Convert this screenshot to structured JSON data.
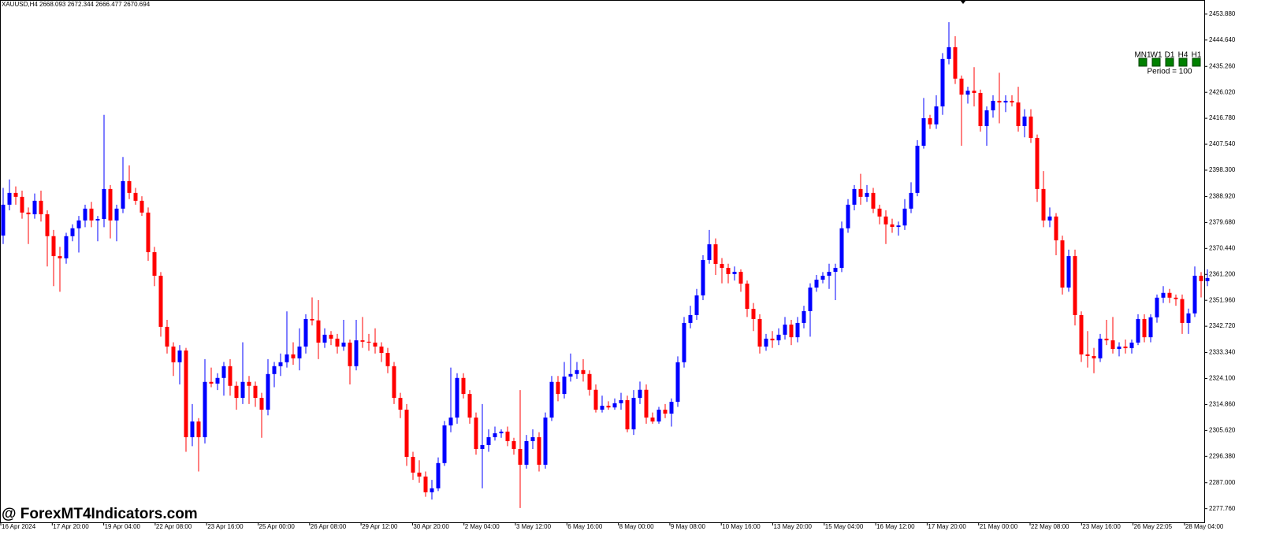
{
  "chart_data": {
    "type": "candlestick",
    "header": "XAUUSD,H4  2668.093 2672.344 2666.477 2670.694",
    "watermark": "@ ForexMT4Indicators.com",
    "panel": {
      "timeframes": [
        "MN1",
        "W1",
        "D1",
        "H4",
        "H1"
      ],
      "period": "Period = 100",
      "box_color": "#008000"
    },
    "up_color": "#0000ff",
    "down_color": "#ff0000",
    "ylim": [
      2272.9,
      2458.9
    ],
    "yticks": [
      {
        "value": 2453.88,
        "label": "2453.880"
      },
      {
        "value": 2444.64,
        "label": "2444.640"
      },
      {
        "value": 2435.26,
        "label": "2435.260"
      },
      {
        "value": 2426.02,
        "label": "2426.020"
      },
      {
        "value": 2416.78,
        "label": "2416.780"
      },
      {
        "value": 2407.54,
        "label": "2407.540"
      },
      {
        "value": 2398.3,
        "label": "2398.300"
      },
      {
        "value": 2388.92,
        "label": "2388.920"
      },
      {
        "value": 2379.68,
        "label": "2379.680"
      },
      {
        "value": 2370.44,
        "label": "2370.440"
      },
      {
        "value": 2361.2,
        "label": "2361.200"
      },
      {
        "value": 2351.96,
        "label": "2351.960"
      },
      {
        "value": 2342.72,
        "label": "2342.720"
      },
      {
        "value": 2333.34,
        "label": "2333.340"
      },
      {
        "value": 2324.1,
        "label": "2324.100"
      },
      {
        "value": 2314.86,
        "label": "2314.860"
      },
      {
        "value": 2305.62,
        "label": "2305.620"
      },
      {
        "value": 2296.38,
        "label": "2296.380"
      },
      {
        "value": 2287,
        "label": "2287.000"
      },
      {
        "value": 2277.76,
        "label": "2277.760"
      }
    ],
    "xlabels": [
      "16 Apr 2024",
      "17 Apr 20:00",
      "19 Apr 04:00",
      "22 Apr 08:00",
      "23 Apr 16:00",
      "25 Apr 00:00",
      "26 Apr 08:00",
      "29 Apr 12:00",
      "30 Apr 20:00",
      "2 May 04:00",
      "3 May 12:00",
      "6 May 16:00",
      "8 May 00:00",
      "9 May 08:00",
      "10 May 16:00",
      "13 May 20:00",
      "15 May 04:00",
      "16 May 12:00",
      "17 May 20:00",
      "21 May 00:00",
      "22 May 08:00",
      "23 May 16:00",
      "26 May 22:05",
      "28 May 04:00"
    ],
    "candles": [
      [
        2375.0,
        2392.0,
        2372.0,
        2386.0
      ],
      [
        2386.0,
        2395.0,
        2384.0,
        2390.2
      ],
      [
        2390.2,
        2392.5,
        2386.0,
        2388.8
      ],
      [
        2388.8,
        2391.0,
        2381.0,
        2383.2
      ],
      [
        2383.2,
        2385.0,
        2372.0,
        2382.6
      ],
      [
        2382.6,
        2390.0,
        2381.0,
        2387.4
      ],
      [
        2387.4,
        2391.0,
        2380.0,
        2382.6
      ],
      [
        2382.6,
        2384.0,
        2364.0,
        2374.8
      ],
      [
        2374.8,
        2377.0,
        2357.0,
        2367.7
      ],
      [
        2367.7,
        2371.0,
        2355.0,
        2366.9
      ],
      [
        2366.9,
        2376.0,
        2365.0,
        2374.8
      ],
      [
        2374.8,
        2379.0,
        2373.0,
        2377.6
      ],
      [
        2377.6,
        2382.0,
        2369.0,
        2380.4
      ],
      [
        2380.4,
        2386.0,
        2378.0,
        2384.6
      ],
      [
        2384.6,
        2387.0,
        2378.0,
        2380.4
      ],
      [
        2380.4,
        2382.0,
        2373.0,
        2380.9
      ],
      [
        2380.9,
        2418.0,
        2378.0,
        2391.6
      ],
      [
        2391.6,
        2393.0,
        2374.0,
        2380.4
      ],
      [
        2380.4,
        2386.0,
        2373.0,
        2384.6
      ],
      [
        2384.6,
        2403.0,
        2383.0,
        2394.4
      ],
      [
        2394.4,
        2400.0,
        2388.0,
        2390.2
      ],
      [
        2390.2,
        2392.0,
        2386.0,
        2387.4
      ],
      [
        2387.4,
        2389.0,
        2382.0,
        2383.2
      ],
      [
        2383.2,
        2385.0,
        2366.0,
        2369.1
      ],
      [
        2369.1,
        2371.0,
        2357.0,
        2360.7
      ],
      [
        2360.7,
        2362.0,
        2339.0,
        2342.5
      ],
      [
        2342.5,
        2345.0,
        2333.0,
        2335.5
      ],
      [
        2335.5,
        2337.0,
        2325.0,
        2329.9
      ],
      [
        2329.9,
        2336.0,
        2322.0,
        2334.1
      ],
      [
        2334.1,
        2335.0,
        2298.0,
        2303.2
      ],
      [
        2303.2,
        2315.0,
        2300.0,
        2308.8
      ],
      [
        2308.8,
        2310.0,
        2291.0,
        2303.2
      ],
      [
        2303.2,
        2331.0,
        2301.0,
        2322.9
      ],
      [
        2322.9,
        2328.0,
        2321.0,
        2322.3
      ],
      [
        2322.3,
        2326.0,
        2320.0,
        2324.3
      ],
      [
        2324.3,
        2330.0,
        2318.0,
        2328.5
      ],
      [
        2328.5,
        2331.0,
        2318.0,
        2321.5
      ],
      [
        2321.5,
        2323.0,
        2313.0,
        2317.2
      ],
      [
        2317.2,
        2337.0,
        2315.0,
        2322.9
      ],
      [
        2322.9,
        2325.0,
        2315.0,
        2321.5
      ],
      [
        2321.5,
        2323.0,
        2314.0,
        2317.2
      ],
      [
        2317.2,
        2319.0,
        2303.0,
        2313.0
      ],
      [
        2313.0,
        2331.0,
        2311.0,
        2325.7
      ],
      [
        2325.7,
        2330.0,
        2321.0,
        2328.5
      ],
      [
        2328.5,
        2333.0,
        2325.0,
        2329.9
      ],
      [
        2329.9,
        2348.0,
        2328.0,
        2332.7
      ],
      [
        2332.7,
        2337.0,
        2329.0,
        2331.3
      ],
      [
        2331.3,
        2342.0,
        2327.0,
        2335.5
      ],
      [
        2335.5,
        2347.0,
        2333.0,
        2345.3
      ],
      [
        2345.3,
        2353.0,
        2343.0,
        2344.8
      ],
      [
        2344.8,
        2352.0,
        2331.0,
        2336.9
      ],
      [
        2336.9,
        2342.0,
        2335.0,
        2339.7
      ],
      [
        2339.7,
        2341.0,
        2336.0,
        2338.3
      ],
      [
        2338.3,
        2340.0,
        2333.0,
        2335.5
      ],
      [
        2335.5,
        2345.0,
        2334.0,
        2336.9
      ],
      [
        2336.9,
        2338.0,
        2322.0,
        2328.5
      ],
      [
        2328.5,
        2345.0,
        2327.0,
        2337.7
      ],
      [
        2337.7,
        2346.0,
        2335.0,
        2337.2
      ],
      [
        2337.2,
        2340.0,
        2334.0,
        2336.9
      ],
      [
        2336.9,
        2342.0,
        2333.0,
        2335.5
      ],
      [
        2335.5,
        2337.0,
        2330.0,
        2333.2
      ],
      [
        2333.2,
        2335.0,
        2326.0,
        2328.5
      ],
      [
        2328.5,
        2330.0,
        2315.0,
        2317.2
      ],
      [
        2317.2,
        2319.0,
        2310.0,
        2313.0
      ],
      [
        2313.0,
        2315.0,
        2293.0,
        2296.2
      ],
      [
        2296.2,
        2298.0,
        2288.0,
        2290.6
      ],
      [
        2290.6,
        2295.0,
        2287.0,
        2289.2
      ],
      [
        2289.2,
        2291.0,
        2282.0,
        2283.6
      ],
      [
        2283.6,
        2288.0,
        2281.0,
        2285.0
      ],
      [
        2285.0,
        2296.0,
        2284.0,
        2294.0
      ],
      [
        2294.0,
        2309.0,
        2293.0,
        2307.4
      ],
      [
        2307.4,
        2328.0,
        2305.0,
        2310.2
      ],
      [
        2310.2,
        2326.0,
        2308.0,
        2324.3
      ],
      [
        2324.3,
        2326.0,
        2317.0,
        2318.6
      ],
      [
        2318.6,
        2320.0,
        2308.0,
        2310.2
      ],
      [
        2310.2,
        2312.0,
        2297.0,
        2299.0
      ],
      [
        2299.0,
        2315.0,
        2285.0,
        2300.4
      ],
      [
        2300.4,
        2306.0,
        2298.0,
        2303.2
      ],
      [
        2303.2,
        2307.0,
        2302.0,
        2304.6
      ],
      [
        2304.6,
        2306.0,
        2303.0,
        2305.2
      ],
      [
        2305.2,
        2307.0,
        2300.0,
        2301.8
      ],
      [
        2301.8,
        2303.0,
        2297.0,
        2299.0
      ],
      [
        2299.0,
        2320.0,
        2278.0,
        2293.4
      ],
      [
        2293.4,
        2304.0,
        2292.0,
        2301.8
      ],
      [
        2301.8,
        2306.0,
        2299.0,
        2303.2
      ],
      [
        2303.2,
        2305.0,
        2291.0,
        2293.4
      ],
      [
        2293.4,
        2312.0,
        2292.0,
        2310.2
      ],
      [
        2310.2,
        2325.0,
        2309.0,
        2322.9
      ],
      [
        2322.9,
        2325.0,
        2316.0,
        2318.6
      ],
      [
        2318.6,
        2330.0,
        2317.0,
        2324.8
      ],
      [
        2324.8,
        2333.0,
        2323.0,
        2325.7
      ],
      [
        2325.7,
        2330.0,
        2324.0,
        2327.1
      ],
      [
        2327.1,
        2331.0,
        2323.0,
        2325.7
      ],
      [
        2325.7,
        2327.0,
        2318.0,
        2320.1
      ],
      [
        2320.1,
        2322.0,
        2312.0,
        2313.0
      ],
      [
        2313.0,
        2318.0,
        2312.0,
        2314.4
      ],
      [
        2314.4,
        2316.0,
        2313.0,
        2313.8
      ],
      [
        2313.8,
        2317.0,
        2313.0,
        2315.3
      ],
      [
        2315.3,
        2319.0,
        2313.0,
        2316.4
      ],
      [
        2316.4,
        2318.0,
        2305.0,
        2306.0
      ],
      [
        2306.0,
        2320.0,
        2304.0,
        2317.2
      ],
      [
        2317.2,
        2323.0,
        2315.0,
        2320.1
      ],
      [
        2320.1,
        2322.0,
        2308.0,
        2310.2
      ],
      [
        2310.2,
        2312.0,
        2308.0,
        2308.8
      ],
      [
        2308.8,
        2314.0,
        2308.0,
        2313.0
      ],
      [
        2313.0,
        2315.0,
        2310.0,
        2311.6
      ],
      [
        2311.6,
        2317.0,
        2307.0,
        2315.8
      ],
      [
        2315.8,
        2332.0,
        2314.0,
        2329.9
      ],
      [
        2329.9,
        2346.0,
        2328.0,
        2343.9
      ],
      [
        2343.9,
        2350.0,
        2342.0,
        2346.7
      ],
      [
        2346.7,
        2356.0,
        2345.0,
        2353.7
      ],
      [
        2353.7,
        2368.0,
        2352.0,
        2366.3
      ],
      [
        2366.3,
        2377.0,
        2365.0,
        2371.9
      ],
      [
        2371.9,
        2374.0,
        2361.0,
        2364.9
      ],
      [
        2364.9,
        2367.0,
        2358.0,
        2363.5
      ],
      [
        2363.5,
        2365.0,
        2358.0,
        2361.3
      ],
      [
        2361.3,
        2364.0,
        2359.0,
        2362.1
      ],
      [
        2362.1,
        2363.0,
        2355.0,
        2357.9
      ],
      [
        2357.9,
        2359.0,
        2346.0,
        2348.9
      ],
      [
        2348.9,
        2351.0,
        2341.0,
        2345.3
      ],
      [
        2345.3,
        2347.0,
        2333.0,
        2335.5
      ],
      [
        2335.5,
        2340.0,
        2334.0,
        2338.3
      ],
      [
        2338.3,
        2341.0,
        2335.0,
        2337.7
      ],
      [
        2337.7,
        2342.0,
        2336.0,
        2339.7
      ],
      [
        2339.7,
        2346.0,
        2338.0,
        2343.3
      ],
      [
        2343.3,
        2345.0,
        2336.0,
        2338.8
      ],
      [
        2338.8,
        2346.0,
        2337.0,
        2343.9
      ],
      [
        2343.9,
        2350.0,
        2342.0,
        2348.1
      ],
      [
        2348.1,
        2358.0,
        2339.0,
        2356.5
      ],
      [
        2356.5,
        2361.0,
        2355.0,
        2359.3
      ],
      [
        2359.3,
        2362.0,
        2358.0,
        2360.7
      ],
      [
        2360.7,
        2365.0,
        2356.0,
        2362.1
      ],
      [
        2362.1,
        2365.0,
        2352.0,
        2363.5
      ],
      [
        2363.5,
        2380.0,
        2362.0,
        2377.6
      ],
      [
        2377.6,
        2388.0,
        2376.0,
        2386.0
      ],
      [
        2386.0,
        2393.0,
        2384.0,
        2391.6
      ],
      [
        2391.6,
        2397.0,
        2386.0,
        2388.8
      ],
      [
        2388.8,
        2393.0,
        2387.0,
        2390.2
      ],
      [
        2390.2,
        2392.0,
        2383.0,
        2384.6
      ],
      [
        2384.6,
        2386.0,
        2379.0,
        2381.8
      ],
      [
        2381.8,
        2384.0,
        2372.0,
        2379.0
      ],
      [
        2379.0,
        2381.0,
        2376.0,
        2378.1
      ],
      [
        2378.1,
        2380.0,
        2375.0,
        2378.6
      ],
      [
        2378.6,
        2388.0,
        2377.0,
        2384.6
      ],
      [
        2384.6,
        2394.0,
        2383.0,
        2390.2
      ],
      [
        2390.2,
        2409.0,
        2389.0,
        2407.0
      ],
      [
        2407.0,
        2424.0,
        2406.0,
        2416.8
      ],
      [
        2416.8,
        2418.0,
        2413.0,
        2414.6
      ],
      [
        2414.6,
        2425.0,
        2413.0,
        2421.0
      ],
      [
        2421.0,
        2440.0,
        2418.0,
        2437.9
      ],
      [
        2437.9,
        2451.0,
        2436.0,
        2442.1
      ],
      [
        2442.1,
        2446.0,
        2429.0,
        2430.9
      ],
      [
        2430.9,
        2432.0,
        2407.0,
        2425.2
      ],
      [
        2425.2,
        2428.0,
        2422.0,
        2426.6
      ],
      [
        2426.6,
        2435.0,
        2421.0,
        2425.8
      ],
      [
        2425.8,
        2427.0,
        2412.0,
        2414.0
      ],
      [
        2414.0,
        2421.0,
        2407.0,
        2419.6
      ],
      [
        2419.6,
        2425.0,
        2417.0,
        2423.0
      ],
      [
        2423.0,
        2433.0,
        2415.0,
        2422.4
      ],
      [
        2422.4,
        2425.0,
        2419.0,
        2423.0
      ],
      [
        2423.0,
        2425.0,
        2421.0,
        2422.4
      ],
      [
        2422.4,
        2428.0,
        2412.0,
        2414.0
      ],
      [
        2414.0,
        2420.0,
        2410.0,
        2417.4
      ],
      [
        2417.4,
        2420.0,
        2408.0,
        2409.8
      ],
      [
        2409.8,
        2411.0,
        2387.0,
        2391.6
      ],
      [
        2391.6,
        2398.0,
        2378.0,
        2380.4
      ],
      [
        2380.4,
        2385.0,
        2378.0,
        2381.8
      ],
      [
        2381.8,
        2383.0,
        2368.0,
        2373.3
      ],
      [
        2373.3,
        2375.0,
        2354.0,
        2356.5
      ],
      [
        2356.5,
        2370.0,
        2355.0,
        2367.7
      ],
      [
        2367.7,
        2370.0,
        2343.0,
        2346.7
      ],
      [
        2346.7,
        2348.0,
        2330.0,
        2332.7
      ],
      [
        2332.7,
        2341.0,
        2328.0,
        2332.1
      ],
      [
        2332.1,
        2335.0,
        2326.0,
        2331.3
      ],
      [
        2331.3,
        2340.0,
        2330.0,
        2338.3
      ],
      [
        2338.3,
        2345.0,
        2336.0,
        2337.7
      ],
      [
        2337.7,
        2346.0,
        2333.0,
        2334.6
      ],
      [
        2334.6,
        2337.0,
        2332.0,
        2335.5
      ],
      [
        2335.5,
        2338.0,
        2333.0,
        2334.9
      ],
      [
        2334.9,
        2338.0,
        2333.0,
        2336.9
      ],
      [
        2336.9,
        2347.0,
        2336.0,
        2345.3
      ],
      [
        2345.3,
        2347.0,
        2337.0,
        2338.8
      ],
      [
        2338.8,
        2347.0,
        2337.0,
        2345.9
      ],
      [
        2345.9,
        2354.0,
        2344.0,
        2352.9
      ],
      [
        2352.9,
        2357.0,
        2351.0,
        2354.6
      ],
      [
        2354.6,
        2356.0,
        2351.0,
        2352.9
      ],
      [
        2352.9,
        2354.0,
        2350.0,
        2352.4
      ],
      [
        2352.4,
        2354.0,
        2340.0,
        2343.9
      ],
      [
        2343.9,
        2349.0,
        2340.0,
        2347.3
      ],
      [
        2347.3,
        2364.0,
        2346.0,
        2360.7
      ],
      [
        2360.7,
        2362.0,
        2353.0,
        2358.8
      ],
      [
        2358.8,
        2363.0,
        2357.0,
        2359.9
      ]
    ]
  }
}
